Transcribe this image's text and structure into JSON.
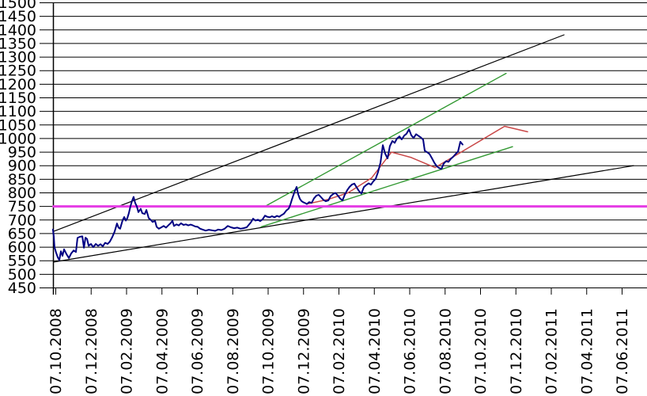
{
  "page": {
    "background": "#FFFFFF"
  },
  "chart_data": {
    "type": "line",
    "title": "",
    "legend": "none",
    "grid": "horizontal-only",
    "x_axis": {
      "tick_labels": [
        "07.10.2008",
        "07.12.2008",
        "07.02.2009",
        "07.04.2009",
        "07.06.2009",
        "07.08.2009",
        "07.10.2009",
        "07.12.2009",
        "07.02.2010",
        "07.04.2010",
        "07.06.2010",
        "07.08.2010",
        "07.10.2010",
        "07.12.2010",
        "07.02.2011",
        "07.04.2011",
        "07.06.2011"
      ],
      "unit_note": "series x values are fractional months after 07.10.2008; one tick = 2 months"
    },
    "y_axis": {
      "min": 450,
      "max": 1500,
      "step": 50,
      "tick_labels": [
        "1500",
        "1450",
        "1400",
        "1350",
        "1300",
        "1250",
        "1200",
        "1150",
        "1100",
        "1050",
        "1000",
        "950",
        "900",
        "850",
        "800",
        "750",
        "700",
        "650",
        "600",
        "550",
        "500",
        "450"
      ]
    },
    "series": [
      {
        "name": "channel-upper-black",
        "color": "#000000",
        "width": 1.2,
        "points": [
          [
            -0.13,
            658
          ],
          [
            28.72,
            1382
          ]
        ]
      },
      {
        "name": "channel-lower-black",
        "color": "#000000",
        "width": 1.2,
        "points": [
          [
            -0.13,
            545
          ],
          [
            32.65,
            900
          ]
        ]
      },
      {
        "name": "trend-upper-green",
        "color": "#339933",
        "width": 1.4,
        "points": [
          [
            11.87,
            752
          ],
          [
            25.45,
            1240
          ]
        ]
      },
      {
        "name": "trend-lower-green",
        "color": "#339933",
        "width": 1.4,
        "points": [
          [
            11.6,
            675
          ],
          [
            25.81,
            970
          ]
        ]
      },
      {
        "name": "support-750-magenta",
        "color": "#E53CE5",
        "width": 3,
        "points": [
          [
            -0.13,
            750
          ],
          [
            33.41,
            750
          ]
        ]
      },
      {
        "name": "smoothed-red",
        "color": "#C94747",
        "width": 1.5,
        "points": [
          [
            14.28,
            760
          ],
          [
            15.4,
            776
          ],
          [
            16.51,
            800
          ],
          [
            17.85,
            855
          ],
          [
            18.97,
            950
          ],
          [
            20.09,
            930
          ],
          [
            21.43,
            893
          ],
          [
            25.36,
            1045
          ],
          [
            26.66,
            1025
          ]
        ]
      },
      {
        "name": "price-navy",
        "color": "#000082",
        "width": 2,
        "points": [
          [
            -0.16,
            665
          ],
          [
            -0.11,
            640
          ],
          [
            -0.07,
            600
          ],
          [
            0.02,
            580
          ],
          [
            0.11,
            563
          ],
          [
            0.2,
            552
          ],
          [
            0.29,
            585
          ],
          [
            0.38,
            568
          ],
          [
            0.47,
            592
          ],
          [
            0.6,
            575
          ],
          [
            0.74,
            560
          ],
          [
            0.87,
            577
          ],
          [
            1.01,
            588
          ],
          [
            1.14,
            582
          ],
          [
            1.23,
            634
          ],
          [
            1.36,
            638
          ],
          [
            1.5,
            640
          ],
          [
            1.59,
            598
          ],
          [
            1.68,
            635
          ],
          [
            1.77,
            630
          ],
          [
            1.86,
            605
          ],
          [
            1.99,
            612
          ],
          [
            2.12,
            600
          ],
          [
            2.26,
            612
          ],
          [
            2.39,
            605
          ],
          [
            2.53,
            611
          ],
          [
            2.66,
            603
          ],
          [
            2.79,
            616
          ],
          [
            2.93,
            612
          ],
          [
            3.06,
            621
          ],
          [
            3.2,
            638
          ],
          [
            3.33,
            658
          ],
          [
            3.46,
            687
          ],
          [
            3.55,
            672
          ],
          [
            3.64,
            668
          ],
          [
            3.78,
            700
          ],
          [
            3.87,
            711
          ],
          [
            3.96,
            698
          ],
          [
            4.04,
            706
          ],
          [
            4.13,
            725
          ],
          [
            4.22,
            750
          ],
          [
            4.31,
            770
          ],
          [
            4.4,
            785
          ],
          [
            4.49,
            762
          ],
          [
            4.58,
            750
          ],
          [
            4.67,
            729
          ],
          [
            4.8,
            741
          ],
          [
            4.89,
            725
          ],
          [
            5.03,
            722
          ],
          [
            5.12,
            737
          ],
          [
            5.25,
            707
          ],
          [
            5.39,
            699
          ],
          [
            5.47,
            693
          ],
          [
            5.61,
            697
          ],
          [
            5.7,
            675
          ],
          [
            5.83,
            668
          ],
          [
            5.97,
            673
          ],
          [
            6.1,
            678
          ],
          [
            6.23,
            672
          ],
          [
            6.37,
            681
          ],
          [
            6.5,
            689
          ],
          [
            6.59,
            697
          ],
          [
            6.68,
            678
          ],
          [
            6.82,
            684
          ],
          [
            6.95,
            680
          ],
          [
            7.08,
            688
          ],
          [
            7.22,
            682
          ],
          [
            7.35,
            684
          ],
          [
            7.49,
            680
          ],
          [
            7.62,
            683
          ],
          [
            7.75,
            680
          ],
          [
            7.89,
            676
          ],
          [
            8.02,
            675
          ],
          [
            8.16,
            668
          ],
          [
            8.29,
            665
          ],
          [
            8.47,
            661
          ],
          [
            8.65,
            664
          ],
          [
            8.83,
            662
          ],
          [
            9.01,
            660
          ],
          [
            9.18,
            665
          ],
          [
            9.36,
            663
          ],
          [
            9.54,
            668
          ],
          [
            9.72,
            678
          ],
          [
            9.9,
            673
          ],
          [
            10.08,
            670
          ],
          [
            10.26,
            672
          ],
          [
            10.44,
            668
          ],
          [
            10.61,
            670
          ],
          [
            10.79,
            673
          ],
          [
            10.88,
            680
          ],
          [
            11.02,
            691
          ],
          [
            11.15,
            705
          ],
          [
            11.28,
            698
          ],
          [
            11.42,
            701
          ],
          [
            11.55,
            696
          ],
          [
            11.69,
            703
          ],
          [
            11.82,
            716
          ],
          [
            11.95,
            712
          ],
          [
            12.09,
            710
          ],
          [
            12.22,
            714
          ],
          [
            12.36,
            710
          ],
          [
            12.49,
            715
          ],
          [
            12.63,
            712
          ],
          [
            12.76,
            718
          ],
          [
            12.89,
            723
          ],
          [
            13.03,
            735
          ],
          [
            13.16,
            742
          ],
          [
            13.25,
            756
          ],
          [
            13.34,
            775
          ],
          [
            13.43,
            792
          ],
          [
            13.52,
            808
          ],
          [
            13.61,
            822
          ],
          [
            13.7,
            795
          ],
          [
            13.79,
            778
          ],
          [
            13.88,
            770
          ],
          [
            13.97,
            766
          ],
          [
            14.1,
            762
          ],
          [
            14.19,
            759
          ],
          [
            14.32,
            766
          ],
          [
            14.46,
            763
          ],
          [
            14.59,
            780
          ],
          [
            14.73,
            790
          ],
          [
            14.86,
            793
          ],
          [
            14.99,
            784
          ],
          [
            15.13,
            774
          ],
          [
            15.26,
            769
          ],
          [
            15.4,
            772
          ],
          [
            15.53,
            788
          ],
          [
            15.66,
            795
          ],
          [
            15.8,
            800
          ],
          [
            15.93,
            791
          ],
          [
            16.07,
            779
          ],
          [
            16.2,
            772
          ],
          [
            16.33,
            793
          ],
          [
            16.47,
            810
          ],
          [
            16.6,
            822
          ],
          [
            16.74,
            831
          ],
          [
            16.87,
            834
          ],
          [
            17.0,
            820
          ],
          [
            17.14,
            806
          ],
          [
            17.27,
            797
          ],
          [
            17.41,
            821
          ],
          [
            17.54,
            829
          ],
          [
            17.68,
            835
          ],
          [
            17.81,
            830
          ],
          [
            17.94,
            842
          ],
          [
            18.08,
            852
          ],
          [
            18.21,
            876
          ],
          [
            18.35,
            912
          ],
          [
            18.48,
            976
          ],
          [
            18.61,
            945
          ],
          [
            18.75,
            927
          ],
          [
            18.88,
            972
          ],
          [
            19.02,
            991
          ],
          [
            19.15,
            984
          ],
          [
            19.28,
            1000
          ],
          [
            19.42,
            1008
          ],
          [
            19.55,
            997
          ],
          [
            19.69,
            1011
          ],
          [
            19.82,
            1018
          ],
          [
            19.96,
            1034
          ],
          [
            20.09,
            1012
          ],
          [
            20.22,
            1002
          ],
          [
            20.36,
            1016
          ],
          [
            20.49,
            1010
          ],
          [
            20.63,
            1004
          ],
          [
            20.76,
            996
          ],
          [
            20.85,
            955
          ],
          [
            20.98,
            950
          ],
          [
            21.12,
            943
          ],
          [
            21.25,
            928
          ],
          [
            21.39,
            911
          ],
          [
            21.52,
            899
          ],
          [
            21.65,
            892
          ],
          [
            21.79,
            888
          ],
          [
            21.92,
            908
          ],
          [
            22.06,
            917
          ],
          [
            22.19,
            914
          ],
          [
            22.32,
            925
          ],
          [
            22.46,
            933
          ],
          [
            22.59,
            943
          ],
          [
            22.73,
            952
          ],
          [
            22.86,
            988
          ],
          [
            22.99,
            978
          ]
        ]
      }
    ]
  }
}
